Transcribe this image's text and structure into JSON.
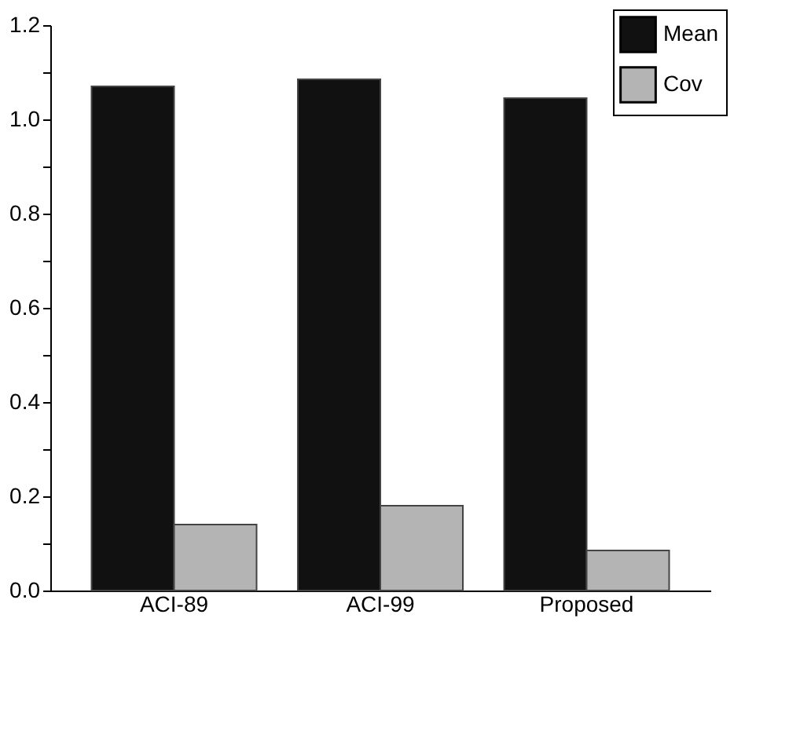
{
  "chart_data": {
    "type": "bar",
    "categories": [
      "ACI-89",
      "ACI-99",
      "Proposed"
    ],
    "series": [
      {
        "name": "Mean",
        "color": "#111111",
        "values": [
          1.07,
          1.085,
          1.045
        ]
      },
      {
        "name": "Cov",
        "color": "#b4b4b4",
        "values": [
          0.14,
          0.18,
          0.085
        ]
      }
    ],
    "ylim": [
      0,
      1.2
    ],
    "yticks": [
      {
        "value": 0,
        "label": "0.0"
      },
      {
        "value": 0.1,
        "label": null
      },
      0.2,
      {
        "value": 0.3,
        "label": null
      },
      0.4,
      {
        "value": 0.5,
        "label": null
      },
      0.6,
      {
        "value": 0.7,
        "label": null
      },
      0.8,
      {
        "value": 0.9,
        "label": null
      },
      {
        "value": 1,
        "label": "1.0"
      },
      {
        "value": 1.1,
        "label": null
      },
      1.2
    ],
    "grid": false,
    "legend": "top right"
  }
}
